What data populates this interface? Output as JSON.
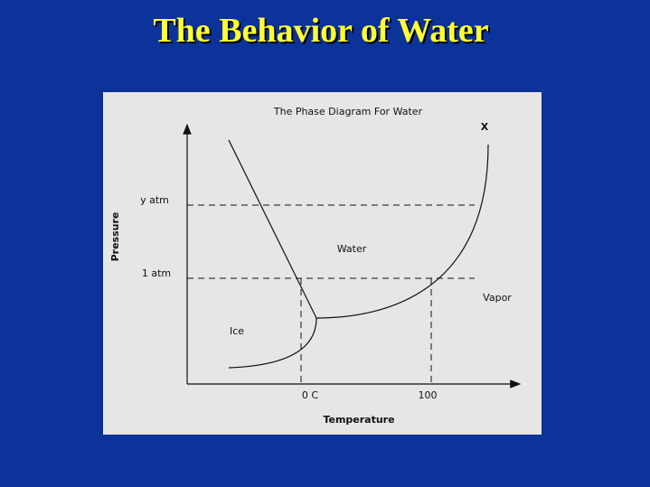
{
  "title": "The Behavior of Water",
  "diagram": {
    "title": "The Phase Diagram For Water",
    "corner_mark": "X",
    "y_axis_label": "Pressure",
    "x_axis_label": "Temperature",
    "pressure_levels": [
      "y atm",
      "1 atm"
    ],
    "temperature_marks": [
      "0 C",
      "100"
    ],
    "regions": [
      "Water",
      "Vapor",
      "Ice"
    ]
  }
}
